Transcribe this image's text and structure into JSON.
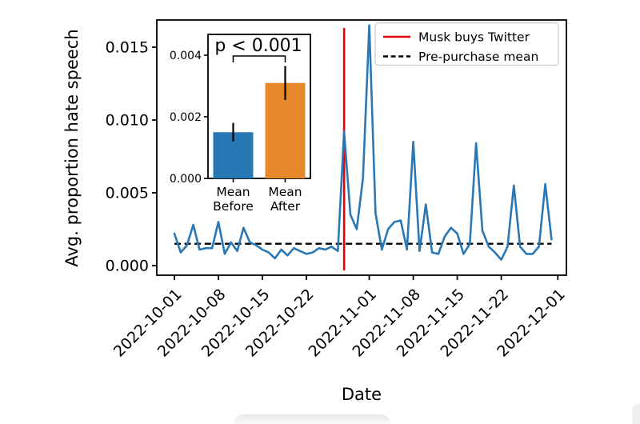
{
  "chart_data": {
    "type": "line",
    "title": "",
    "xlabel": "Date",
    "ylabel": "Avg. proportion hate speech",
    "grid": false,
    "x_tick_labels": [
      "2022-10-01",
      "2022-10-08",
      "2022-10-15",
      "2022-10-22",
      "2022-11-01",
      "2022-11-08",
      "2022-11-15",
      "2022-11-22",
      "2022-12-01"
    ],
    "y_ticks": [
      0.0,
      0.005,
      0.01,
      0.015
    ],
    "ylim": [
      -0.0006,
      0.0169
    ],
    "line_color": "#2977b4",
    "series": [
      {
        "name": "Avg. proportion hate speech",
        "dates": [
          "2022-10-01",
          "2022-10-02",
          "2022-10-03",
          "2022-10-04",
          "2022-10-05",
          "2022-10-06",
          "2022-10-07",
          "2022-10-08",
          "2022-10-09",
          "2022-10-10",
          "2022-10-11",
          "2022-10-12",
          "2022-10-13",
          "2022-10-14",
          "2022-10-15",
          "2022-10-16",
          "2022-10-17",
          "2022-10-18",
          "2022-10-19",
          "2022-10-20",
          "2022-10-21",
          "2022-10-22",
          "2022-10-23",
          "2022-10-24",
          "2022-10-25",
          "2022-10-26",
          "2022-10-27",
          "2022-10-28",
          "2022-10-29",
          "2022-10-30",
          "2022-10-31",
          "2022-11-01",
          "2022-11-02",
          "2022-11-03",
          "2022-11-04",
          "2022-11-05",
          "2022-11-06",
          "2022-11-07",
          "2022-11-08",
          "2022-11-09",
          "2022-11-10",
          "2022-11-11",
          "2022-11-12",
          "2022-11-13",
          "2022-11-14",
          "2022-11-15",
          "2022-11-16",
          "2022-11-17",
          "2022-11-18",
          "2022-11-19",
          "2022-11-20",
          "2022-11-21",
          "2022-11-22",
          "2022-11-23",
          "2022-11-24",
          "2022-11-25",
          "2022-11-26",
          "2022-11-27",
          "2022-11-28",
          "2022-11-29",
          "2022-11-30"
        ],
        "values": [
          0.0022,
          0.0009,
          0.0014,
          0.0028,
          0.0011,
          0.0012,
          0.0012,
          0.003,
          0.0008,
          0.0016,
          0.001,
          0.0026,
          0.0016,
          0.0014,
          0.0011,
          0.0009,
          0.0005,
          0.0011,
          0.0007,
          0.0012,
          0.001,
          0.0008,
          0.0009,
          0.0012,
          0.0011,
          0.0013,
          0.001,
          0.0092,
          0.0035,
          0.0025,
          0.006,
          0.0165,
          0.0036,
          0.0011,
          0.0025,
          0.003,
          0.0031,
          0.0011,
          0.0085,
          0.001,
          0.0042,
          0.0009,
          0.0008,
          0.002,
          0.0026,
          0.0022,
          0.0008,
          0.0015,
          0.0084,
          0.0024,
          0.0013,
          0.0009,
          0.0004,
          0.0013,
          0.0055,
          0.0013,
          0.0008,
          0.0008,
          0.0013,
          0.0056,
          0.0018
        ]
      }
    ],
    "event_line": {
      "label": "Musk buys Twitter",
      "date": "2022-10-28",
      "color": "#e8000b",
      "style": "solid"
    },
    "mean_line": {
      "label": "Pre-purchase mean",
      "value": 0.0015,
      "color": "#000000",
      "style": "dashed"
    },
    "legend": {
      "position": "upper right",
      "entries": [
        "Musk buys Twitter",
        "Pre-purchase mean"
      ]
    },
    "inset": {
      "type": "bar",
      "p_label": "p < 0.001",
      "categories": [
        "Mean Before",
        "Mean After"
      ],
      "values": [
        0.0015,
        0.0031
      ],
      "errors": [
        0.0003,
        0.00055
      ],
      "bar_colors": [
        "#2878b5",
        "#e8882d"
      ],
      "y_ticks": [
        0.0,
        0.002,
        0.004
      ],
      "ylim": [
        0,
        0.00468
      ]
    }
  }
}
